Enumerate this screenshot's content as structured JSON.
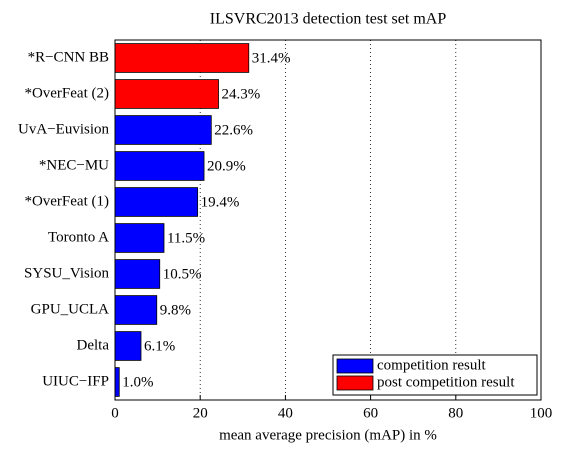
{
  "chart_data": {
    "type": "hbar",
    "title": "ILSVRC2013 detection test set mAP",
    "x_label": "mean average precision (mAP) in %",
    "categories": [
      "*R−CNN BB",
      "*OverFeat (2)",
      "UvA−Euvision",
      "*NEC−MU",
      "*OverFeat (1)",
      "Toronto A",
      "SYSU_Vision",
      "GPU_UCLA",
      "Delta",
      "UIUC−IFP"
    ],
    "series": [
      {
        "name": "competition result",
        "color": "#0000ff",
        "values": [
          null,
          null,
          22.6,
          20.9,
          19.4,
          11.5,
          10.5,
          9.8,
          6.1,
          1.0
        ],
        "value_labels": [
          null,
          null,
          "22.6%",
          "20.9%",
          "19.4%",
          "11.5%",
          "10.5%",
          "9.8%",
          "6.1%",
          "1.0%"
        ]
      },
      {
        "name": "post competition result",
        "color": "#ff0000",
        "values": [
          31.4,
          24.3,
          null,
          null,
          null,
          null,
          null,
          null,
          null,
          null
        ],
        "value_labels": [
          "31.4%",
          "24.3%",
          null,
          null,
          null,
          null,
          null,
          null,
          null,
          null
        ]
      }
    ],
    "xlim": [
      0,
      100
    ],
    "xticks": [
      0,
      20,
      40,
      60,
      80,
      100
    ],
    "grid": true,
    "legend": "lower right"
  }
}
